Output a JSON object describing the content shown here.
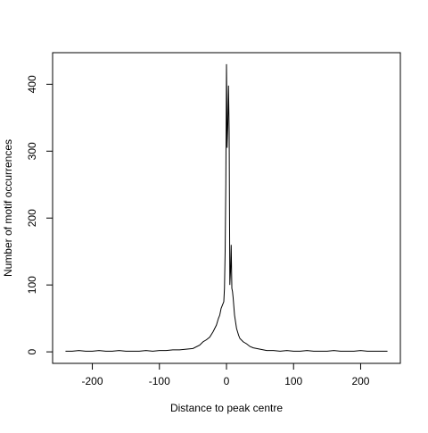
{
  "chart_data": {
    "type": "line",
    "x_label": "Distance to peak centre",
    "y_label": "Number of motif occurrences",
    "x": [
      -240,
      -230,
      -220,
      -210,
      -200,
      -190,
      -180,
      -170,
      -160,
      -150,
      -140,
      -130,
      -120,
      -110,
      -100,
      -90,
      -80,
      -70,
      -60,
      -50,
      -40,
      -35,
      -30,
      -25,
      -20,
      -15,
      -12,
      -10,
      -8,
      -6,
      -4,
      -3,
      -2,
      -1,
      0,
      1,
      2,
      3,
      4,
      5,
      6,
      7,
      8,
      9,
      10,
      12,
      15,
      18,
      20,
      25,
      30,
      35,
      40,
      50,
      60,
      70,
      80,
      90,
      100,
      110,
      120,
      130,
      140,
      150,
      160,
      170,
      180,
      190,
      200,
      210,
      220,
      230,
      240
    ],
    "series": [
      {
        "name": "counts",
        "color": "#000000",
        "values": [
          1,
          1,
          2,
          1,
          1,
          2,
          1,
          1,
          2,
          1,
          1,
          1,
          2,
          1,
          2,
          2,
          3,
          3,
          4,
          5,
          10,
          15,
          18,
          22,
          30,
          40,
          50,
          55,
          65,
          70,
          75,
          95,
          150,
          250,
          430,
          305,
          340,
          398,
          330,
          100,
          120,
          160,
          95,
          90,
          80,
          55,
          35,
          25,
          20,
          15,
          12,
          8,
          6,
          4,
          2,
          2,
          1,
          2,
          1,
          1,
          2,
          1,
          1,
          1,
          2,
          1,
          1,
          1,
          2,
          1,
          1,
          1,
          1
        ]
      }
    ],
    "xlim": [
      -259.2,
      259.2
    ],
    "ylim": [
      -17.2,
      447.2
    ],
    "xticks": [
      -200,
      -100,
      0,
      100,
      200
    ],
    "yticks": [
      0,
      100,
      200,
      300,
      400
    ]
  }
}
